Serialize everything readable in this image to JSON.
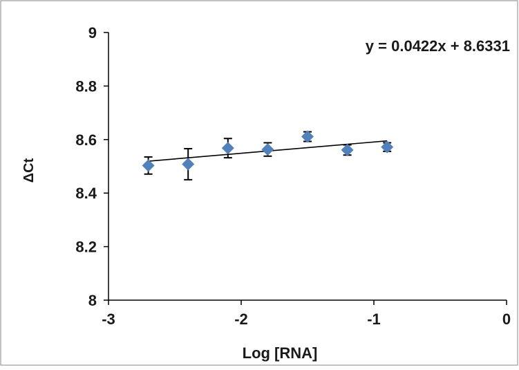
{
  "chart_data": {
    "type": "scatter",
    "xlabel": "Log [RNA]",
    "ylabel": "ΔCt",
    "xlim": [
      -3,
      0
    ],
    "ylim": [
      8,
      9
    ],
    "x_ticks": [
      -3,
      -2,
      -1,
      0
    ],
    "y_ticks": [
      8,
      8.2,
      8.4,
      8.6,
      8.8,
      9
    ],
    "x_tick_labels": [
      "-3",
      "-2",
      "-1",
      "0"
    ],
    "y_tick_labels": [
      "8",
      "8.2",
      "8.4",
      "8.6",
      "8.8",
      "9"
    ],
    "grid": false,
    "points": [
      {
        "x": -2.7,
        "y": 8.503,
        "err": 0.032
      },
      {
        "x": -2.4,
        "y": 8.508,
        "err": 0.058
      },
      {
        "x": -2.1,
        "y": 8.568,
        "err": 0.036
      },
      {
        "x": -1.8,
        "y": 8.563,
        "err": 0.025
      },
      {
        "x": -1.5,
        "y": 8.611,
        "err": 0.018
      },
      {
        "x": -1.2,
        "y": 8.561,
        "err": 0.019
      },
      {
        "x": -0.9,
        "y": 8.572,
        "err": 0.016
      }
    ],
    "trendline": {
      "slope": 0.0422,
      "intercept": 8.6331,
      "x_start": -2.7,
      "x_end": -0.9,
      "equation": "y = 0.0422x + 8.6331"
    },
    "marker_color": "#4f81bd",
    "line_color": "#000000",
    "errorbar_color": "#000000"
  }
}
